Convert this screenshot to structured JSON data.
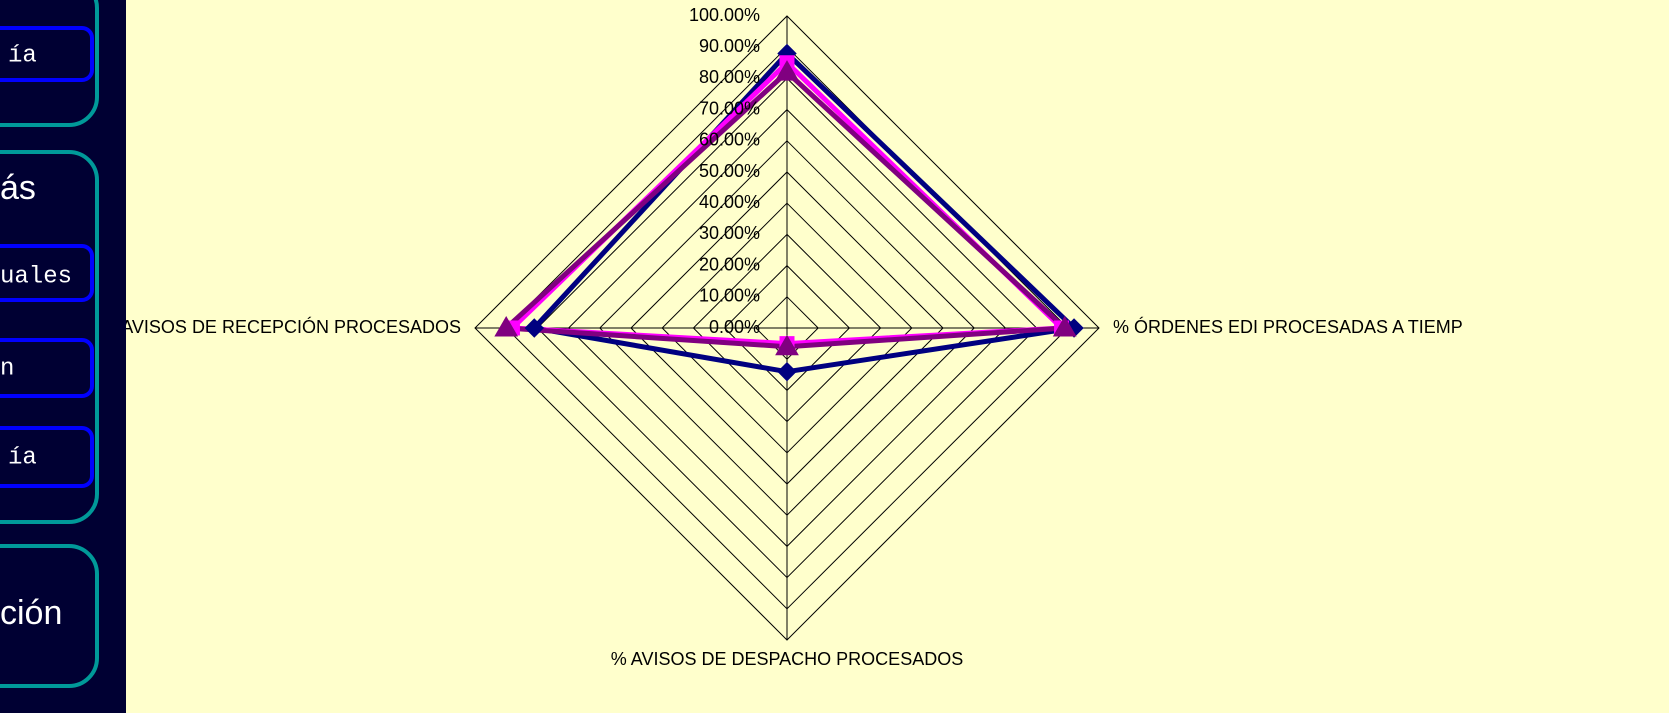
{
  "sidebar": {
    "items": [
      "ía",
      "ás",
      "uales",
      "n",
      "ía",
      "ción"
    ]
  },
  "chart_data": {
    "type": "radar",
    "categories": [
      null,
      "% ÓRDENES EDI PROCESADAS A TIEMP",
      "% AVISOS DE DESPACHO PROCESADOS",
      "% AVISOS DE RECEPCIÓN PROCESADOS"
    ],
    "series": [
      {
        "color": "#000080",
        "marker": "diamond",
        "values": [
          88,
          92,
          14,
          81
        ]
      },
      {
        "color": "#ff00ff",
        "marker": "square",
        "values": [
          85,
          88,
          5,
          88
        ]
      },
      {
        "color": "#800080",
        "marker": "triangle",
        "values": [
          82,
          89,
          6,
          90
        ]
      }
    ],
    "ylim": [
      0,
      100
    ],
    "yticks": [
      {
        "value": 0,
        "label": "0.00%"
      },
      {
        "value": 10,
        "label": "10.00%"
      },
      {
        "value": 20,
        "label": "20.00%"
      },
      {
        "value": 30,
        "label": "30.00%"
      },
      {
        "value": 40,
        "label": "40.00%"
      },
      {
        "value": 50,
        "label": "50.00%"
      },
      {
        "value": 60,
        "label": "60.00%"
      },
      {
        "value": 70,
        "label": "70.00%"
      },
      {
        "value": 80,
        "label": "80.00%"
      },
      {
        "value": 90,
        "label": "90.00%"
      },
      {
        "value": 100,
        "label": "100.00%"
      }
    ],
    "grid": true
  }
}
